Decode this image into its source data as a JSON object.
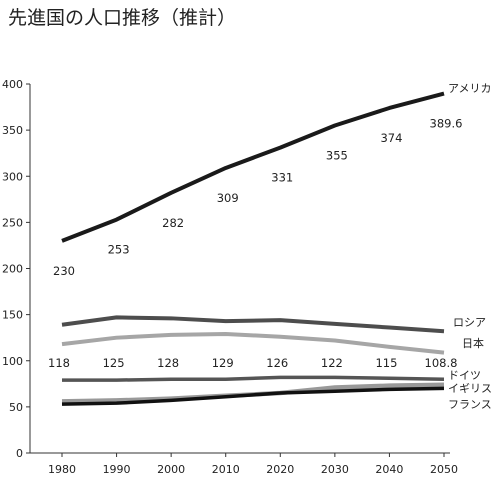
{
  "chart_data": {
    "type": "line",
    "title": "先進国の人口推移（推計）",
    "x": [
      1980,
      1990,
      2000,
      2010,
      2020,
      2030,
      2040,
      2050
    ],
    "x_tick_labels": [
      "1980",
      "1990",
      "2000",
      "2010",
      "2020",
      "2030",
      "2040",
      "2050"
    ],
    "ylim": [
      0,
      400
    ],
    "y_ticks": [
      0,
      50,
      100,
      150,
      200,
      250,
      300,
      350,
      400
    ],
    "y_tick_labels": [
      "0",
      "50",
      "100",
      "150",
      "200",
      "250",
      "300",
      "350",
      "400"
    ],
    "grid": false,
    "series": [
      {
        "name": "アメリカ",
        "color": "#1a1a1a",
        "values": [
          230,
          253,
          282,
          309,
          331,
          355,
          374,
          389.6
        ],
        "data_labels": [
          "230",
          "253",
          "282",
          "309",
          "331",
          "355",
          "374",
          "389.6"
        ]
      },
      {
        "name": "ロシア",
        "color": "#4d4d4d",
        "values": [
          139,
          147,
          146,
          143,
          144,
          140,
          136,
          132
        ]
      },
      {
        "name": "日本",
        "color": "#a6a6a6",
        "values": [
          118,
          125,
          128,
          129,
          126,
          122,
          115,
          108.8
        ],
        "data_labels": [
          "118",
          "125",
          "128",
          "129",
          "126",
          "122",
          "115",
          "108.8"
        ]
      },
      {
        "name": "ドイツ",
        "color": "#555555",
        "values": [
          79,
          79,
          80,
          80,
          82,
          82,
          81,
          80
        ]
      },
      {
        "name": "イギリス",
        "color": "#999999",
        "values": [
          56,
          57,
          59,
          62,
          65,
          71,
          73,
          74
        ]
      },
      {
        "name": "フランス",
        "color": "#111111",
        "values": [
          53,
          54,
          57,
          61,
          65,
          67,
          69,
          70
        ]
      }
    ]
  }
}
